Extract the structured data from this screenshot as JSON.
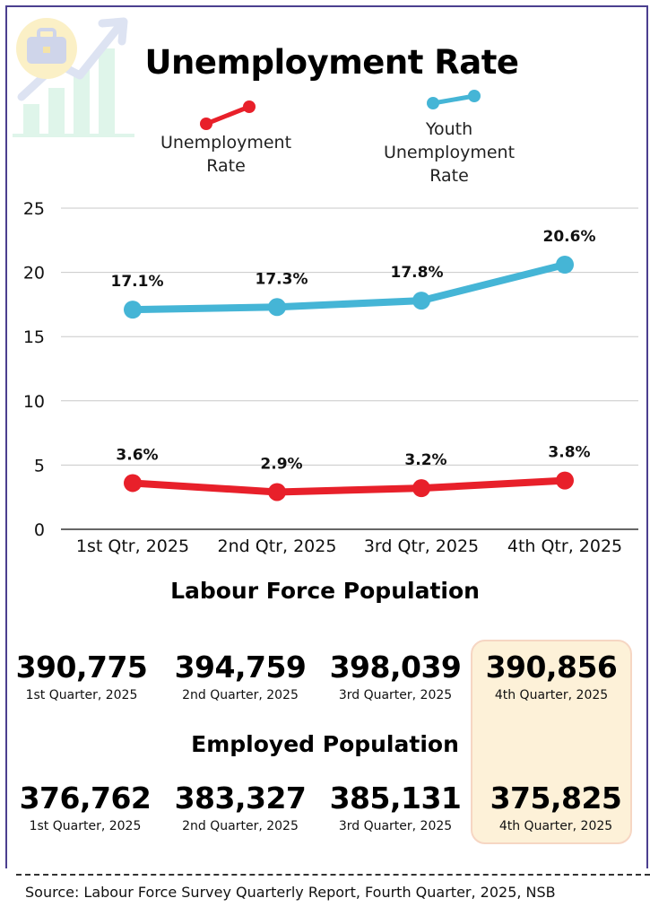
{
  "title": "Unemployment Rate",
  "chart_data": {
    "type": "line",
    "categories": [
      "1st Qtr, 2025",
      "2nd Qtr, 2025",
      "3rd Qtr, 2025",
      "4th Qtr, 2025"
    ],
    "series": [
      {
        "name": "Unemployment Rate",
        "values": [
          3.6,
          2.9,
          3.2,
          3.8
        ],
        "labels": [
          "3.6%",
          "2.9%",
          "3.2%",
          "3.8%"
        ],
        "color": "#e8202a"
      },
      {
        "name": "Youth Unemployment Rate",
        "values": [
          17.1,
          17.3,
          17.8,
          20.6
        ],
        "labels": [
          "17.1%",
          "17.3%",
          "17.8%",
          "20.6%"
        ],
        "color": "#45b5d6"
      }
    ],
    "yticks": [
      0,
      5,
      10,
      15,
      20,
      25
    ],
    "ylim": [
      0,
      25
    ],
    "grid": true,
    "legend": "top",
    "xlabel": "",
    "ylabel": ""
  },
  "legend": {
    "unemployment": [
      "Unemployment",
      "Rate"
    ],
    "youth": [
      "Youth",
      "Unemployment",
      "Rate"
    ]
  },
  "labour_force": {
    "title": "Labour Force Population",
    "items": [
      {
        "value": "390,775",
        "label": "1st Quarter, 2025"
      },
      {
        "value": "394,759",
        "label": "2nd Quarter, 2025"
      },
      {
        "value": "398,039",
        "label": "3rd Quarter, 2025"
      },
      {
        "value": "390,856",
        "label": "4th Quarter, 2025"
      }
    ]
  },
  "employed": {
    "title": "Employed Population",
    "items": [
      {
        "value": "376,762",
        "label": "1st Quarter, 2025"
      },
      {
        "value": "383,327",
        "label": "2nd Quarter, 2025"
      },
      {
        "value": "385,131",
        "label": "3rd Quarter, 2025"
      },
      {
        "value": "375,825",
        "label": "4th Quarter, 2025"
      }
    ]
  },
  "source": "Source: Labour Force Survey Quarterly Report, Fourth Quarter, 2025, NSB",
  "colors": {
    "frame": "#4b3f8f",
    "highlight_bg": "#fdf1d8",
    "highlight_border": "#f6d6c3"
  },
  "icons": {
    "logo": "briefcase-growth-chart-icon"
  }
}
